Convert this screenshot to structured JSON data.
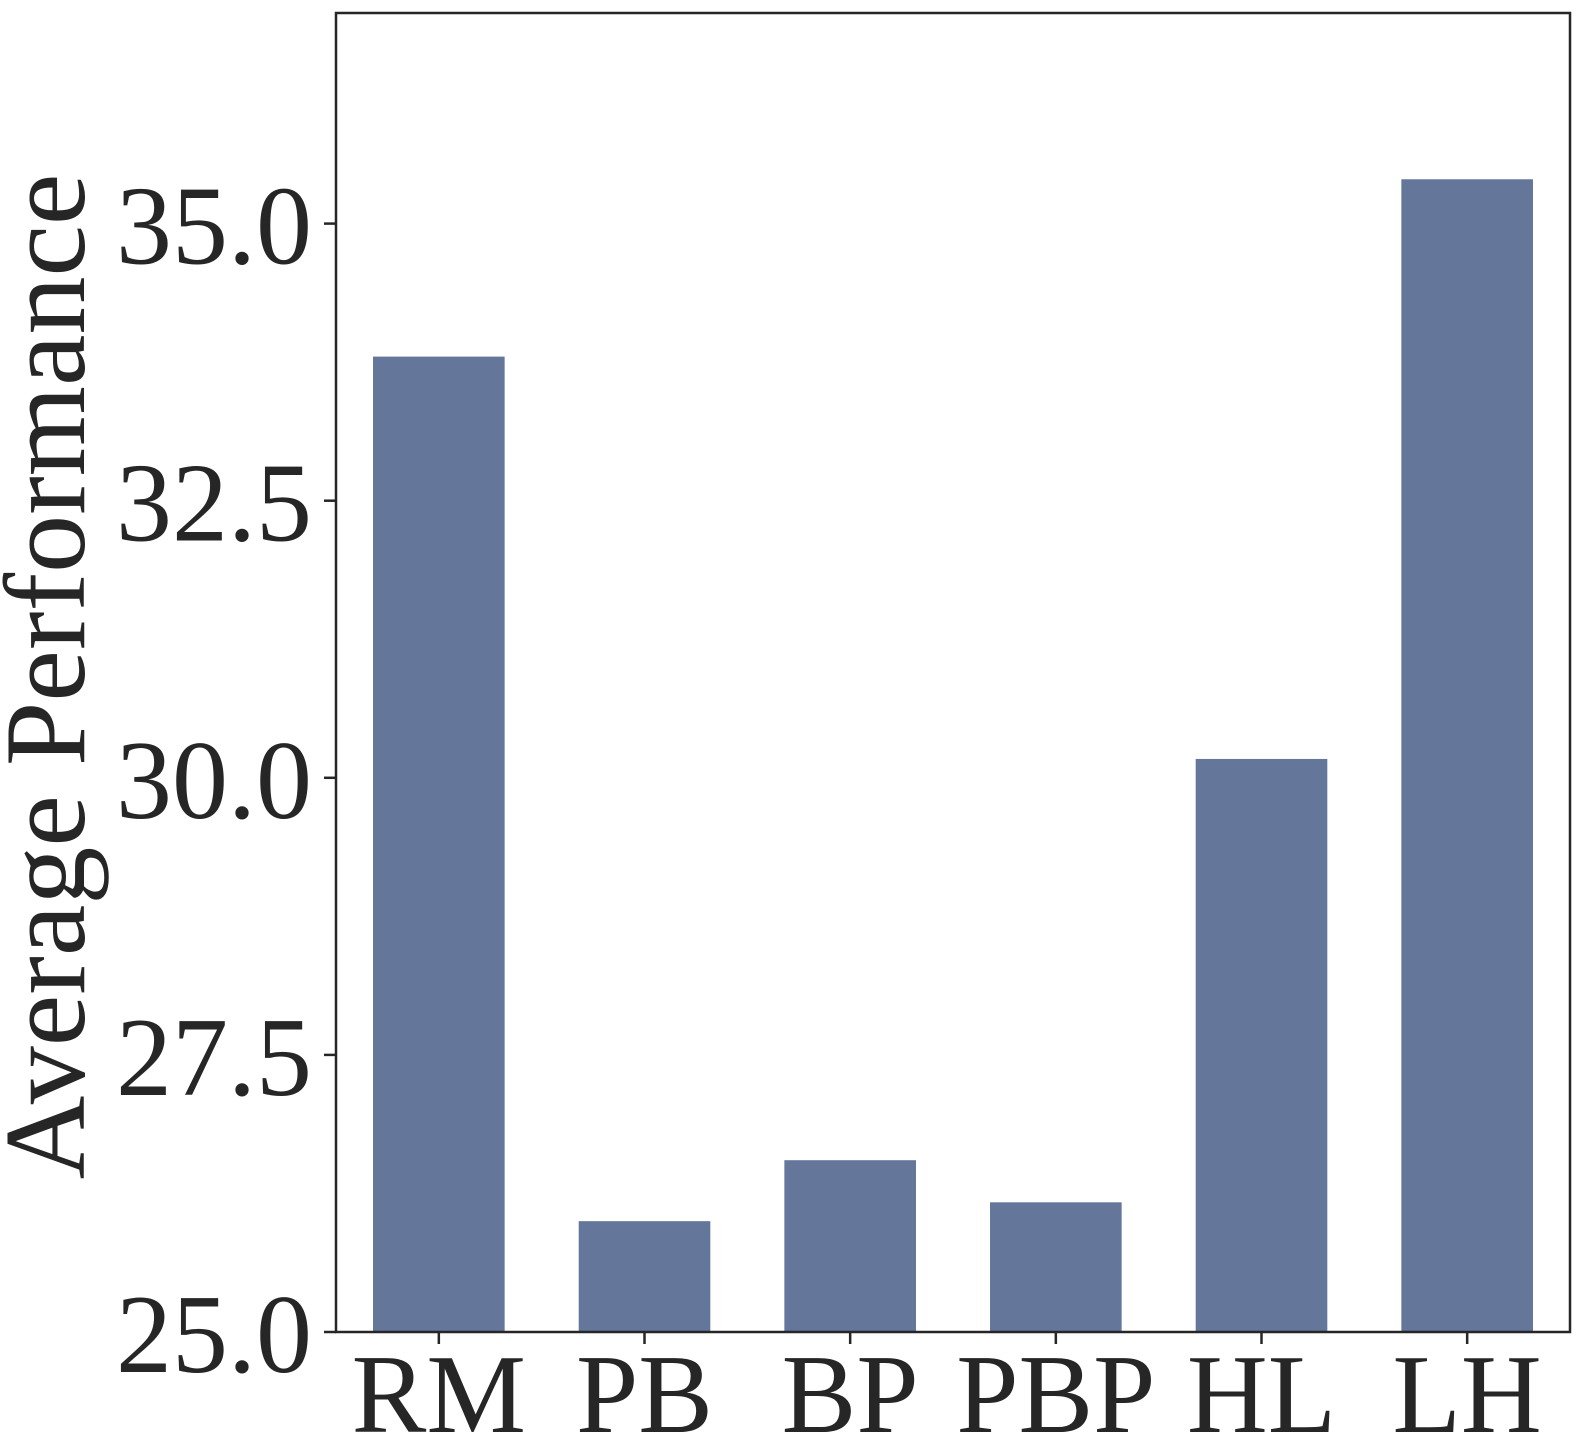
{
  "chart_data": {
    "type": "bar",
    "title": "",
    "xlabel": "",
    "ylabel": "Average Performance",
    "categories": [
      "RM",
      "PB",
      "BP",
      "PBP",
      "HL",
      "LH"
    ],
    "values": [
      33.8,
      26.0,
      26.55,
      26.17,
      30.17,
      35.4
    ],
    "ylim": [
      25.0,
      36.9
    ],
    "yticks": [
      25.0,
      27.5,
      30.0,
      32.5,
      35.0
    ],
    "ytick_labels": [
      "25.0",
      "27.5",
      "30.0",
      "32.5",
      "35.0"
    ],
    "bar_color": "#64779b",
    "grid": false,
    "legend": "none"
  }
}
